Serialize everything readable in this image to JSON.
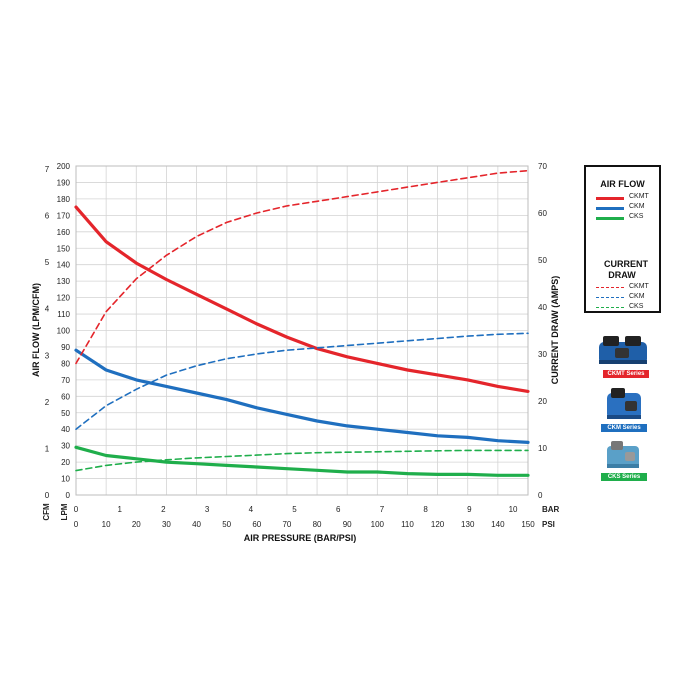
{
  "chart_data": {
    "type": "line",
    "xlabel": "AIR PRESSURE (BAR/PSI)",
    "ylabel_left": "AIR FLOW (LPM/CFM)",
    "ylabel_right": "CURRENT DRAW (AMPS)",
    "x_units": {
      "top_row": "BAR",
      "bottom_row": "PSI"
    },
    "x_ticks_bar": [
      "0",
      "1",
      "2",
      "3",
      "4",
      "5",
      "6",
      "7",
      "8",
      "9",
      "10"
    ],
    "x_ticks_psi": [
      "0",
      "10",
      "20",
      "30",
      "40",
      "50",
      "60",
      "70",
      "80",
      "90",
      "100",
      "110",
      "120",
      "130",
      "140",
      "150"
    ],
    "y_units_left": {
      "outer": "CFM",
      "inner": "LPM"
    },
    "y_ticks_lpm": [
      "0",
      "10",
      "20",
      "30",
      "40",
      "50",
      "60",
      "70",
      "80",
      "90",
      "100",
      "110",
      "120",
      "130",
      "140",
      "150",
      "160",
      "170",
      "180",
      "190",
      "200"
    ],
    "y_ticks_cfm": [
      "0",
      "1",
      "2",
      "3",
      "4",
      "5",
      "6",
      "7"
    ],
    "y_ticks_amps": [
      "0",
      "10",
      "20",
      "30",
      "40",
      "50",
      "60",
      "70"
    ],
    "xlim_psi": [
      0,
      150
    ],
    "ylim_lpm": [
      0,
      200
    ],
    "ylim_amps": [
      0,
      70
    ],
    "grid": true,
    "legend": {
      "position": "right",
      "air_flow_heading": "AIR FLOW",
      "current_draw_heading": "CURRENT DRAW",
      "items": [
        {
          "label": "CKMT",
          "color": "#e4252b"
        },
        {
          "label": "CKM",
          "color": "#1f6fbf"
        },
        {
          "label": "CKS",
          "color": "#1fae4b"
        }
      ]
    },
    "x_psi": [
      0,
      10,
      20,
      30,
      40,
      50,
      60,
      70,
      80,
      90,
      100,
      110,
      120,
      130,
      140,
      150
    ],
    "series": [
      {
        "name": "CKMT",
        "kind": "air_flow",
        "axis": "left",
        "color": "#e4252b",
        "dash": false,
        "values": [
          175,
          154,
          141,
          131,
          122,
          113,
          104,
          96,
          89,
          84,
          80,
          76,
          73,
          70,
          66,
          63
        ]
      },
      {
        "name": "CKM",
        "kind": "air_flow",
        "axis": "left",
        "color": "#1f6fbf",
        "dash": false,
        "values": [
          88,
          76,
          70,
          66,
          62,
          58,
          53,
          49,
          45,
          42,
          40,
          38,
          36,
          35,
          33,
          32
        ]
      },
      {
        "name": "CKS",
        "kind": "air_flow",
        "axis": "left",
        "color": "#1fae4b",
        "dash": false,
        "values": [
          29,
          24,
          22,
          20,
          19,
          18,
          17,
          16,
          15,
          14,
          14,
          13,
          12.5,
          12.5,
          12,
          12
        ]
      },
      {
        "name": "CKMT",
        "kind": "current_draw",
        "axis": "right",
        "color": "#e4252b",
        "dash": true,
        "values": [
          28,
          39,
          46,
          51,
          55,
          58,
          60,
          61.5,
          62.5,
          63.5,
          64.5,
          65.5,
          66.5,
          67.5,
          68.5,
          69
        ]
      },
      {
        "name": "CKM",
        "kind": "current_draw",
        "axis": "right",
        "color": "#1f6fbf",
        "dash": true,
        "values": [
          14,
          19,
          22.5,
          25.5,
          27.5,
          29,
          30,
          30.8,
          31.3,
          31.8,
          32.3,
          32.8,
          33.3,
          33.8,
          34.2,
          34.4
        ]
      },
      {
        "name": "CKS",
        "kind": "current_draw",
        "axis": "right",
        "color": "#1fae4b",
        "dash": true,
        "values": [
          5.2,
          6.3,
          7.0,
          7.5,
          7.9,
          8.2,
          8.5,
          8.8,
          9.0,
          9.1,
          9.2,
          9.3,
          9.4,
          9.5,
          9.5,
          9.5
        ]
      }
    ]
  },
  "products": [
    {
      "badge": "CKMT Series",
      "badge_color": "#e4252b",
      "body_color": "#1f5fa8"
    },
    {
      "badge": "CKM Series",
      "badge_color": "#1f6fbf",
      "body_color": "#2a70c0"
    },
    {
      "badge": "CKS Series",
      "badge_color": "#1fae4b",
      "body_color": "#5aa0c8"
    }
  ]
}
